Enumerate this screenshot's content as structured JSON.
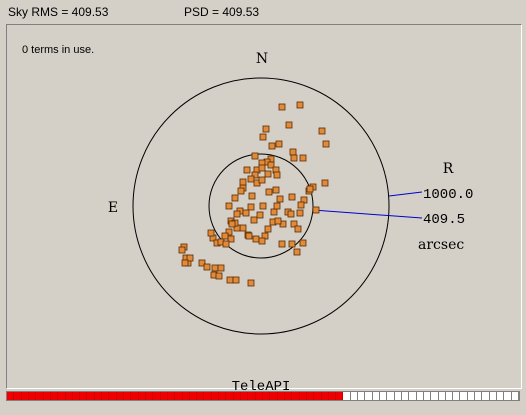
{
  "header": {
    "sky_rms": "Sky RMS = 409.53",
    "psd": "PSD = 409.53"
  },
  "plot": {
    "terms_text": "0 terms in use.",
    "compass": {
      "north": "N",
      "east": "E"
    },
    "scale": {
      "label": "R",
      "outer_value": "1000.0",
      "inner_value": "409.5",
      "unit": "arcsec"
    },
    "watermark": "TeleAPI",
    "colors": {
      "point_fill": "#e08a3a",
      "point_stroke": "#5a2a00",
      "leader_line": "#0000cc",
      "progress_fill": "#ee0000"
    }
  },
  "progress": {
    "segments_total": 70,
    "segments_filled": 46
  }
}
